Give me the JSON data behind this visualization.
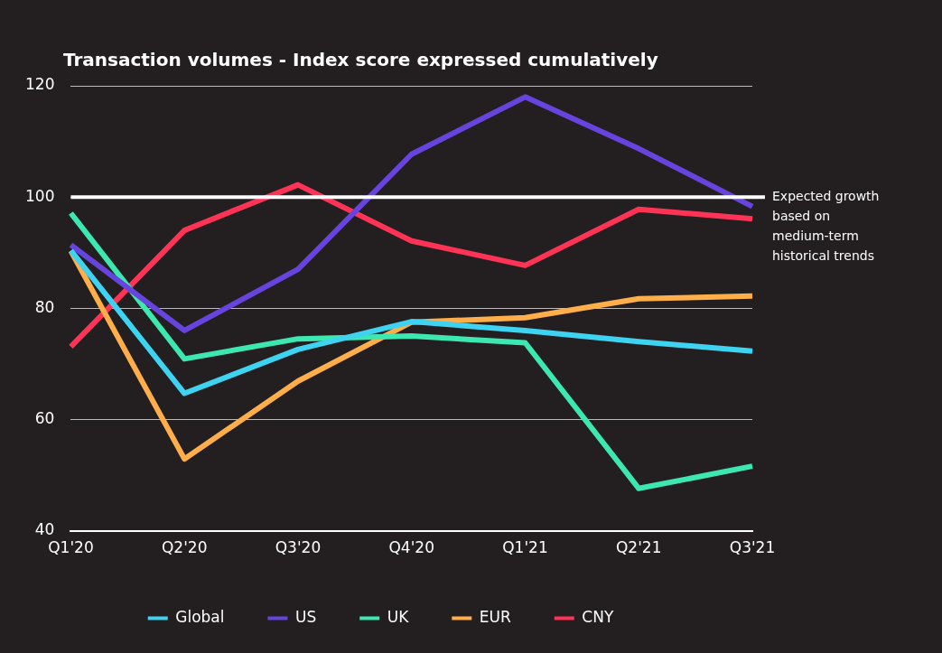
{
  "chart_data": {
    "type": "line",
    "title": "Transaction volumes - Index score expressed cumulatively",
    "categories": [
      "Q1'20",
      "Q2'20",
      "Q3'20",
      "Q4'20",
      "Q1'21",
      "Q2'21",
      "Q3'21"
    ],
    "series": [
      {
        "name": "Global",
        "color": "#3ed3f0",
        "values": [
          90.4,
          64.7,
          72.6,
          77.6,
          76,
          74,
          72.3
        ]
      },
      {
        "name": "US",
        "color": "#6644dd",
        "values": [
          91.4,
          76,
          87,
          107.7,
          118,
          108.7,
          98.3
        ]
      },
      {
        "name": "UK",
        "color": "#3de8b0",
        "values": [
          97.1,
          70.9,
          74.5,
          75,
          73.8,
          47.6,
          51.6
        ]
      },
      {
        "name": "EUR",
        "color": "#ffae4a",
        "values": [
          90.3,
          52.9,
          66.9,
          77.5,
          78.3,
          81.7,
          82.2
        ]
      },
      {
        "name": "CNY",
        "color": "#ff3355",
        "values": [
          73.1,
          94,
          102.2,
          92.1,
          87.7,
          97.8,
          96.1
        ]
      }
    ],
    "ylim": [
      40,
      120
    ],
    "yticks": [
      40,
      60,
      80,
      100,
      120
    ],
    "grid": "y",
    "legend": "bottom",
    "marker": "none",
    "line_style": "solid",
    "ref_lines": [
      {
        "axis": "y",
        "value": 100,
        "label": "Expected growth based on medium-term historical trends",
        "color": "#ffffff"
      }
    ]
  }
}
